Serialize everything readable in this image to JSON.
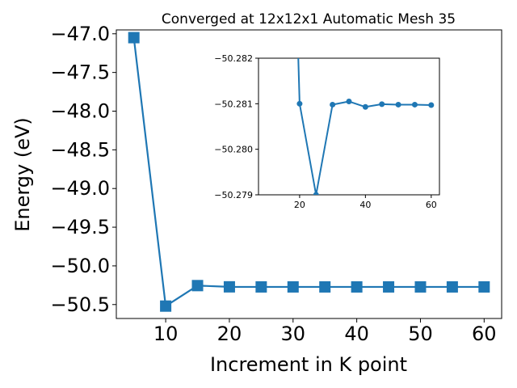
{
  "chart_data": [
    {
      "type": "line",
      "title": "Converged at 12x12x1 Automatic Mesh 35",
      "xlabel": "Increment in K point",
      "ylabel": "Energy (eV)",
      "xlim": [
        2.25,
        62.75
      ],
      "ylim": [
        -50.68,
        -46.95
      ],
      "x_ticks": [
        10,
        20,
        30,
        40,
        50,
        60
      ],
      "y_ticks": [
        -47.0,
        -47.5,
        -48.0,
        -48.5,
        -49.0,
        -49.5,
        -50.0,
        -50.5
      ],
      "x_tick_labels": [
        "10",
        "20",
        "30",
        "40",
        "50",
        "60"
      ],
      "y_tick_labels": [
        "−47.0",
        "−47.5",
        "−48.0",
        "−48.5",
        "−49.0",
        "−49.5",
        "−50.0",
        "−50.5"
      ],
      "marker": "square",
      "color": "#1f77b4",
      "grid": false,
      "series": [
        {
          "x": [
            5,
            10,
            15,
            20,
            25,
            30,
            35,
            40,
            45,
            50,
            55,
            60
          ],
          "y": [
            -47.05,
            -50.52,
            -50.255,
            -50.271,
            -50.272,
            -50.2719,
            -50.2719,
            -50.2721,
            -50.2719,
            -50.272,
            -50.272,
            -50.272
          ]
        }
      ]
    },
    {
      "type": "line",
      "title": "",
      "xlabel": "",
      "ylabel": "",
      "inset": true,
      "xlim": [
        7.5,
        62.5
      ],
      "ylim": [
        -50.279,
        -50.282
      ],
      "x_ticks": [
        20,
        40,
        60
      ],
      "y_ticks": [
        -50.282,
        -50.281,
        -50.28,
        -50.279
      ],
      "x_tick_labels": [
        "20",
        "40",
        "60"
      ],
      "y_tick_labels": [
        "−50.282",
        "−50.281",
        "−50.280",
        "−50.279"
      ],
      "marker": "circle",
      "color": "#1f77b4",
      "grid": false,
      "series": [
        {
          "x": [
            20,
            25,
            30,
            35,
            40,
            45,
            50,
            55,
            60
          ],
          "y": [
            -50.281,
            -50.279,
            -50.28098,
            -50.28105,
            -50.28093,
            -50.28099,
            -50.28098,
            -50.28098,
            -50.28097
          ]
        }
      ]
    }
  ]
}
